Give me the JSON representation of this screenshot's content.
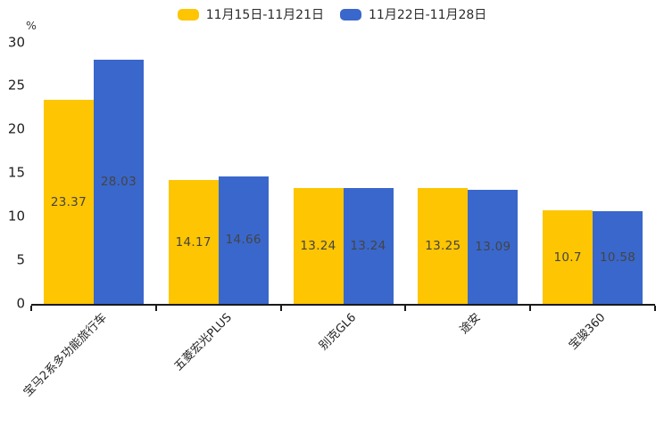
{
  "chart_data": {
    "type": "bar",
    "title": "",
    "xlabel": "",
    "ylabel": "%",
    "ylim": [
      0,
      30
    ],
    "yticks": [
      0,
      5,
      10,
      15,
      20,
      25,
      30
    ],
    "grid": false,
    "legend_position": "top-center",
    "background_color": "#ffffff",
    "axis_color": "#1a1a1a",
    "bar_label_color": "#444444",
    "categories": [
      "宝马2系多功能旅行车",
      "五菱宏光PLUS",
      "别克GL6",
      "途安",
      "宝骏360"
    ],
    "series": [
      {
        "name": "11月15日-11月21日",
        "color": "#FDC502",
        "values": [
          23.37,
          14.17,
          13.24,
          13.25,
          10.7
        ]
      },
      {
        "name": "11月22日-11月28日",
        "color": "#3A67CB",
        "values": [
          28.03,
          14.66,
          13.24,
          13.09,
          10.58
        ]
      }
    ]
  }
}
